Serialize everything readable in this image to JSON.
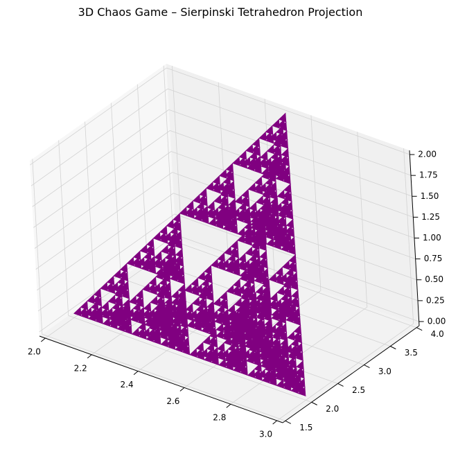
{
  "chart_data": {
    "type": "scatter",
    "projection": "3d",
    "title": "3D Chaos Game – Sierpinski Tetrahedron Projection",
    "xlabel": "",
    "ylabel": "",
    "zlabel": "",
    "marker_color": "#800080",
    "grid": true,
    "x_ticks": [
      "2.0",
      "2.2",
      "2.4",
      "2.6",
      "2.8",
      "3.0"
    ],
    "y_ticks": [
      "1.5",
      "2.0",
      "2.5",
      "3.0",
      "3.5",
      "4.0"
    ],
    "z_ticks": [
      "0.00",
      "0.25",
      "0.50",
      "0.75",
      "1.00",
      "1.25",
      "1.50",
      "1.75",
      "2.00"
    ],
    "xlim": [
      1.975,
      3.025
    ],
    "ylim": [
      1.45,
      4.05
    ],
    "zlim": [
      -0.05,
      2.05
    ],
    "fractal": {
      "vertices": [
        [
          2.0,
          2.0,
          0.0
        ],
        [
          3.0,
          2.0,
          0.0
        ],
        [
          2.5,
          4.0,
          2.0
        ],
        [
          2.5,
          3.0,
          0.0
        ]
      ],
      "depth": 5
    }
  }
}
